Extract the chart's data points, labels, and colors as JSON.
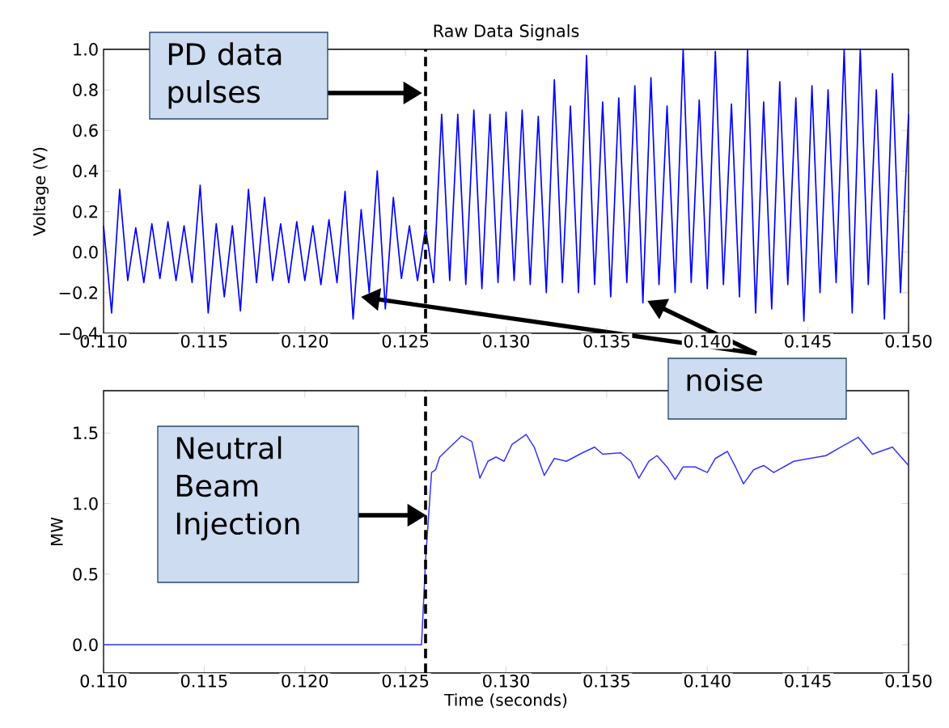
{
  "chart_data": [
    {
      "type": "line",
      "title": "Raw Data Signals",
      "ylabel": "Voltage (V)",
      "x": [
        0.11,
        0.1104,
        0.1108,
        0.1112,
        0.1116,
        0.112,
        0.1124,
        0.1128,
        0.1132,
        0.1136,
        0.114,
        0.1144,
        0.1148,
        0.1152,
        0.1156,
        0.116,
        0.1164,
        0.1168,
        0.1172,
        0.1176,
        0.118,
        0.1184,
        0.1188,
        0.1192,
        0.1196,
        0.12,
        0.1204,
        0.1208,
        0.1212,
        0.1216,
        0.122,
        0.1224,
        0.1228,
        0.1232,
        0.1236,
        0.124,
        0.1244,
        0.1248,
        0.1252,
        0.1256,
        0.126,
        0.1264,
        0.1268,
        0.1272,
        0.1276,
        0.128,
        0.1284,
        0.1288,
        0.1292,
        0.1296,
        0.13,
        0.1304,
        0.1308,
        0.1312,
        0.1316,
        0.132,
        0.1324,
        0.1328,
        0.1332,
        0.1336,
        0.134,
        0.1344,
        0.1348,
        0.1352,
        0.1356,
        0.136,
        0.1364,
        0.1368,
        0.1372,
        0.1376,
        0.138,
        0.1384,
        0.1388,
        0.1392,
        0.1396,
        0.14,
        0.1404,
        0.1408,
        0.1412,
        0.1416,
        0.142,
        0.1424,
        0.1428,
        0.1432,
        0.1436,
        0.144,
        0.1444,
        0.1448,
        0.1452,
        0.1456,
        0.146,
        0.1464,
        0.1468,
        0.1472,
        0.1476,
        0.148,
        0.1484,
        0.1488,
        0.1492,
        0.1496,
        0.15
      ],
      "series": [
        {
          "color": "#0000ff",
          "values": [
            0.13,
            -0.3,
            0.31,
            -0.14,
            0.12,
            -0.15,
            0.14,
            -0.13,
            0.15,
            -0.14,
            0.13,
            -0.15,
            0.33,
            -0.3,
            0.14,
            -0.22,
            0.13,
            -0.29,
            0.31,
            -0.15,
            0.27,
            -0.14,
            0.14,
            -0.15,
            0.15,
            -0.14,
            0.13,
            -0.16,
            0.16,
            -0.15,
            0.3,
            -0.33,
            0.21,
            -0.2,
            0.4,
            -0.28,
            0.27,
            -0.13,
            0.13,
            -0.14,
            0.12,
            -0.15,
            0.68,
            -0.14,
            0.68,
            -0.16,
            0.7,
            -0.18,
            0.68,
            -0.15,
            0.69,
            -0.14,
            0.7,
            -0.16,
            0.67,
            -0.2,
            0.85,
            -0.15,
            0.72,
            -0.2,
            0.97,
            -0.16,
            0.74,
            -0.22,
            0.76,
            -0.15,
            0.82,
            -0.25,
            0.86,
            -0.16,
            0.72,
            -0.2,
            1.0,
            -0.15,
            0.75,
            -0.18,
            0.99,
            -0.16,
            0.73,
            -0.22,
            1.0,
            -0.3,
            0.74,
            -0.28,
            0.84,
            -0.16,
            0.76,
            -0.34,
            0.82,
            -0.2,
            0.8,
            -0.15,
            1.0,
            -0.3,
            1.0,
            -0.16,
            0.8,
            -0.33,
            0.88,
            -0.2,
            0.68
          ]
        }
      ],
      "xlim": [
        0.11,
        0.15
      ],
      "ylim": [
        -0.4,
        1.0
      ],
      "xticks": [
        {
          "value": 0.11,
          "label": "0.110"
        },
        {
          "value": 0.115,
          "label": "0.115"
        },
        {
          "value": 0.12,
          "label": "0.120"
        },
        {
          "value": 0.125,
          "label": "0.125"
        },
        {
          "value": 0.13,
          "label": "0.130"
        },
        {
          "value": 0.135,
          "label": "0.135"
        },
        {
          "value": 0.14,
          "label": "0.140"
        },
        {
          "value": 0.145,
          "label": "0.145"
        },
        {
          "value": 0.15,
          "label": "0.150"
        }
      ],
      "yticks": [
        {
          "value": -0.4,
          "label": "−0.4"
        },
        {
          "value": -0.2,
          "label": "−0.2"
        },
        {
          "value": 0.0,
          "label": "0.0"
        },
        {
          "value": 0.2,
          "label": "0.2"
        },
        {
          "value": 0.4,
          "label": "0.4"
        },
        {
          "value": 0.6,
          "label": "0.6"
        },
        {
          "value": 0.8,
          "label": "0.8"
        },
        {
          "value": 1.0,
          "label": "1.0"
        }
      ],
      "ref_lines": [
        {
          "axis": "x",
          "value": 0.126,
          "color": "#000000",
          "line_style": "dashed"
        }
      ],
      "annotations": [
        "PD data pulses",
        "noise"
      ]
    },
    {
      "type": "line",
      "xlabel": "Time (seconds)",
      "ylabel": "MW",
      "x": [
        0.11,
        0.1258,
        0.126,
        0.1263,
        0.1265,
        0.1267,
        0.1278,
        0.1283,
        0.1287,
        0.1291,
        0.1295,
        0.1299,
        0.1303,
        0.131,
        0.1314,
        0.1319,
        0.1324,
        0.133,
        0.1338,
        0.1344,
        0.1348,
        0.1357,
        0.1362,
        0.1366,
        0.1371,
        0.1375,
        0.138,
        0.1384,
        0.1388,
        0.1394,
        0.14,
        0.1404,
        0.141,
        0.1414,
        0.1418,
        0.1423,
        0.1428,
        0.1433,
        0.1443,
        0.1459,
        0.1465,
        0.1475,
        0.1482,
        0.1492,
        0.15
      ],
      "series": [
        {
          "color": "#3333ff",
          "values": [
            0.0,
            0.0,
            0.6,
            1.22,
            1.24,
            1.33,
            1.48,
            1.44,
            1.18,
            1.3,
            1.33,
            1.3,
            1.42,
            1.49,
            1.4,
            1.2,
            1.32,
            1.3,
            1.36,
            1.4,
            1.35,
            1.36,
            1.3,
            1.18,
            1.3,
            1.34,
            1.26,
            1.17,
            1.26,
            1.26,
            1.22,
            1.32,
            1.37,
            1.26,
            1.14,
            1.24,
            1.27,
            1.22,
            1.3,
            1.34,
            1.39,
            1.47,
            1.35,
            1.4,
            1.27
          ]
        }
      ],
      "xlim": [
        0.11,
        0.15
      ],
      "ylim": [
        -0.2,
        1.8
      ],
      "xticks": [
        {
          "value": 0.11,
          "label": "0.110"
        },
        {
          "value": 0.115,
          "label": "0.115"
        },
        {
          "value": 0.12,
          "label": "0.120"
        },
        {
          "value": 0.125,
          "label": "0.125"
        },
        {
          "value": 0.13,
          "label": "0.130"
        },
        {
          "value": 0.135,
          "label": "0.135"
        },
        {
          "value": 0.14,
          "label": "0.140"
        },
        {
          "value": 0.145,
          "label": "0.145"
        },
        {
          "value": 0.15,
          "label": "0.150"
        }
      ],
      "yticks": [
        {
          "value": 0.0,
          "label": "0.0"
        },
        {
          "value": 0.5,
          "label": "0.5"
        },
        {
          "value": 1.0,
          "label": "1.0"
        },
        {
          "value": 1.5,
          "label": "1.5"
        }
      ],
      "ref_lines": [
        {
          "axis": "x",
          "value": 0.126,
          "color": "#000000",
          "line_style": "dashed"
        }
      ],
      "annotations": [
        "Neutral Beam Injection"
      ]
    }
  ]
}
